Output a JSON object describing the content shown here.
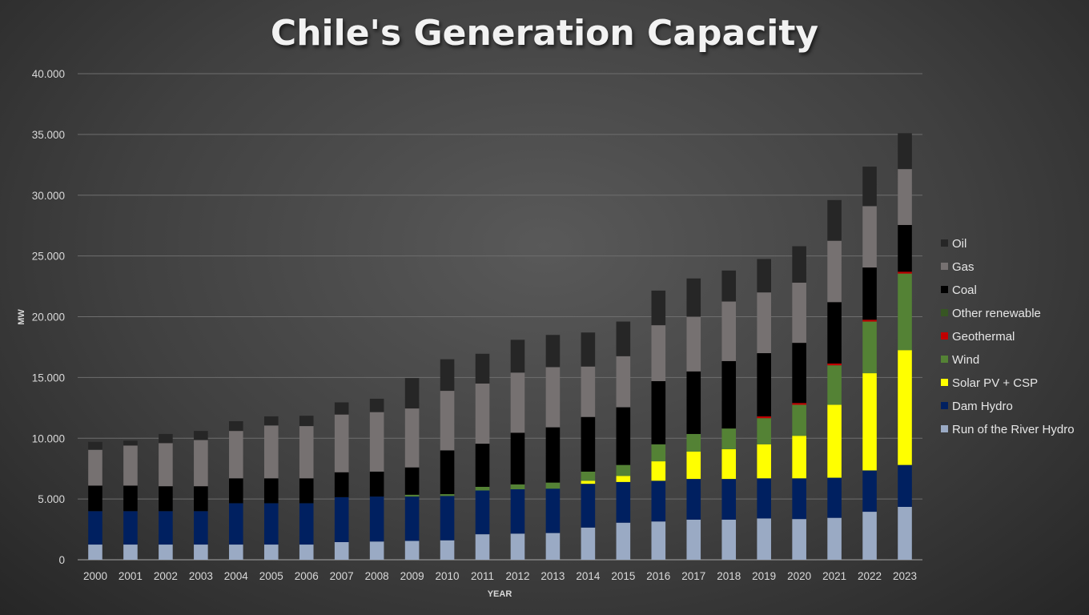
{
  "chart_data": {
    "type": "bar",
    "stacked": true,
    "title": "Chile's Generation Capacity",
    "xlabel": "YEAR",
    "ylabel": "MW",
    "ylim": [
      0,
      40000
    ],
    "yticks": [
      "0",
      "5.000",
      "10.000",
      "15.000",
      "20.000",
      "25.000",
      "30.000",
      "35.000",
      "40.000"
    ],
    "grid": true,
    "legend_position": "right",
    "categories": [
      "2000",
      "2001",
      "2002",
      "2003",
      "2004",
      "2005",
      "2006",
      "2007",
      "2008",
      "2009",
      "2010",
      "2011",
      "2012",
      "2013",
      "2014",
      "2015",
      "2016",
      "2017",
      "2018",
      "2019",
      "2020",
      "2021",
      "2022",
      "2023"
    ],
    "series": [
      {
        "name": "Run of the River Hydro",
        "color": "#9aaac4",
        "values": [
          1250,
          1250,
          1250,
          1250,
          1250,
          1250,
          1250,
          1450,
          1500,
          1550,
          1600,
          2100,
          2150,
          2200,
          2650,
          3050,
          3150,
          3300,
          3300,
          3400,
          3350,
          3450,
          3950,
          4350
        ]
      },
      {
        "name": "Dam Hydro",
        "color": "#002060",
        "values": [
          2750,
          2750,
          2750,
          2750,
          3400,
          3400,
          3400,
          3700,
          3700,
          3650,
          3650,
          3600,
          3650,
          3650,
          3600,
          3350,
          3350,
          3350,
          3350,
          3300,
          3350,
          3300,
          3400,
          3450
        ]
      },
      {
        "name": "Solar PV + CSP",
        "color": "#ffff00",
        "values": [
          0,
          0,
          0,
          0,
          0,
          0,
          0,
          0,
          0,
          0,
          0,
          0,
          0,
          0,
          250,
          500,
          1600,
          2250,
          2450,
          2800,
          3500,
          6000,
          8000,
          9450
        ]
      },
      {
        "name": "Wind",
        "color": "#548235",
        "values": [
          0,
          0,
          0,
          0,
          0,
          0,
          0,
          0,
          0,
          150,
          150,
          300,
          400,
          500,
          750,
          900,
          1400,
          1450,
          1700,
          2150,
          2550,
          3250,
          4250,
          6300
        ]
      },
      {
        "name": "Geothermal",
        "color": "#c00000",
        "values": [
          0,
          0,
          0,
          0,
          0,
          0,
          0,
          0,
          0,
          0,
          0,
          0,
          0,
          0,
          0,
          0,
          0,
          0,
          0,
          150,
          150,
          150,
          150,
          150
        ]
      },
      {
        "name": "Other renewable",
        "color": "#375623",
        "values": [
          0,
          0,
          0,
          0,
          0,
          0,
          0,
          0,
          0,
          0,
          0,
          0,
          0,
          0,
          0,
          0,
          0,
          0,
          0,
          0,
          0,
          0,
          0,
          0
        ]
      },
      {
        "name": "Coal",
        "color": "#000000",
        "values": [
          2100,
          2100,
          2050,
          2050,
          2050,
          2050,
          2050,
          2050,
          2050,
          2250,
          3600,
          3550,
          4250,
          4550,
          4500,
          4750,
          5200,
          5150,
          5550,
          5200,
          4950,
          5050,
          4300,
          3850
        ]
      },
      {
        "name": "Gas",
        "color": "#767171",
        "values": [
          2950,
          3300,
          3550,
          3800,
          3900,
          4350,
          4300,
          4750,
          4900,
          4850,
          4900,
          4950,
          4950,
          4950,
          4150,
          4200,
          4600,
          4500,
          4900,
          5000,
          4950,
          5050,
          5050,
          4600
        ]
      },
      {
        "name": "Oil",
        "color": "#262626",
        "values": [
          650,
          400,
          750,
          750,
          800,
          750,
          850,
          1000,
          1100,
          2500,
          2600,
          2450,
          2700,
          2650,
          2800,
          2850,
          2850,
          3150,
          2550,
          2750,
          3000,
          3350,
          3250,
          2950
        ]
      }
    ]
  }
}
